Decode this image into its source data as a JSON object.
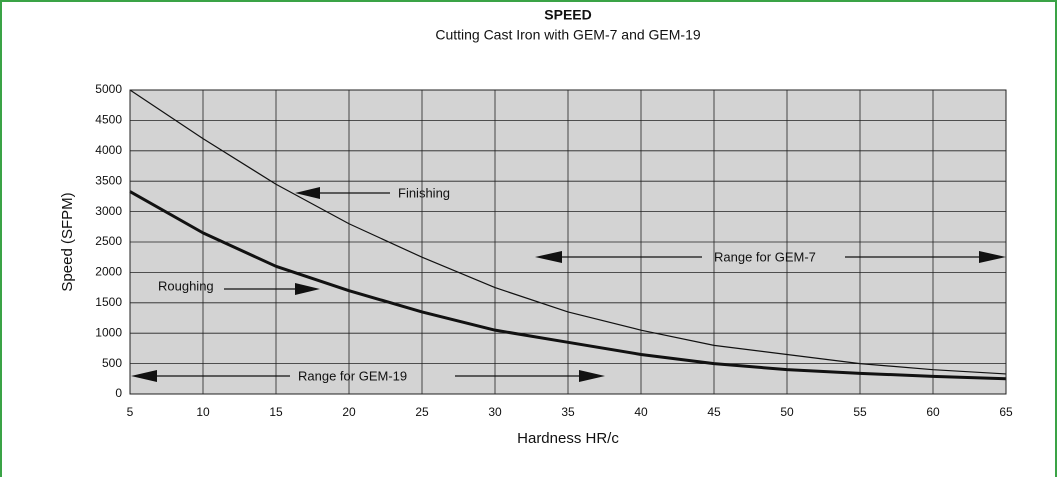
{
  "chart_data": {
    "type": "line",
    "title": "SPEED",
    "subtitle": "Cutting Cast Iron with GEM-7 and GEM-19",
    "x_label": "Hardness HR/c",
    "y_label": "Speed (SFPM)",
    "x": [
      5,
      10,
      15,
      20,
      25,
      30,
      35,
      40,
      45,
      50,
      55,
      60,
      65
    ],
    "series": [
      {
        "name": "Finishing",
        "color": "#111111",
        "values": [
          5000,
          4200,
          3450,
          2800,
          2250,
          1750,
          1350,
          1050,
          800,
          650,
          500,
          400,
          330
        ]
      },
      {
        "name": "Roughing",
        "color": "#111111",
        "values": [
          3330,
          2650,
          2100,
          1700,
          1350,
          1050,
          850,
          650,
          500,
          400,
          340,
          290,
          250
        ]
      }
    ],
    "annotations": [
      "Range for GEM-7",
      "Range for GEM-19"
    ],
    "xlim": [
      5,
      65
    ],
    "xticks": [
      5,
      10,
      15,
      20,
      25,
      30,
      35,
      40,
      45,
      50,
      55,
      60,
      65
    ],
    "ylim": [
      0,
      5000
    ],
    "yticks": [
      0,
      500,
      1000,
      1500,
      2000,
      2500,
      3000,
      3500,
      4000,
      4500,
      5000
    ],
    "grid": true
  }
}
